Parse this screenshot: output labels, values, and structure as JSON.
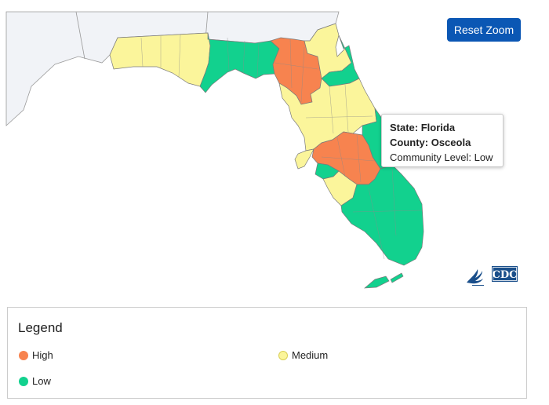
{
  "map": {
    "region": "Florida",
    "colors": {
      "high": "#f7834f",
      "medium": "#fbf59b",
      "low": "#12d18e",
      "water": "#ffffff",
      "neighbor_land": "#f1f3f7",
      "border": "#7a7a7a"
    }
  },
  "reset_zoom_label": "Reset Zoom",
  "tooltip": {
    "state_line": "State: Florida",
    "county_line": "County: Osceola",
    "level_line": "Community Level: Low"
  },
  "logo": {
    "icon": "hhs-eagle-icon",
    "text": "CDC"
  },
  "legend": {
    "title": "Legend",
    "items": [
      {
        "label": "High",
        "color": "#f7834f"
      },
      {
        "label": "Medium",
        "color": "#fbf59b"
      },
      {
        "label": "Low",
        "color": "#12d18e"
      }
    ]
  }
}
